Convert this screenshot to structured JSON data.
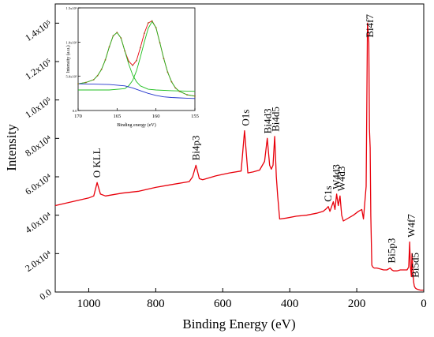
{
  "chart_data": [
    {
      "type": "line",
      "xlabel": "Binding Energy (eV)",
      "ylabel": "Intensity",
      "xlim": [
        1100,
        0
      ],
      "ylim": [
        0,
        150000
      ],
      "x_reversed": true,
      "grid": false,
      "legend": "none",
      "line_color": "#e8000b",
      "x_ticks": [
        {
          "value": 1000,
          "label": "1000"
        },
        {
          "value": 800,
          "label": "800"
        },
        {
          "value": 600,
          "label": "600"
        },
        {
          "value": 400,
          "label": "400"
        },
        {
          "value": 200,
          "label": "200"
        },
        {
          "value": 0,
          "label": "0"
        }
      ],
      "y_ticks": [
        {
          "value": 0,
          "label": "0.0"
        },
        {
          "value": 20000,
          "label": "2.0x10⁴"
        },
        {
          "value": 40000,
          "label": "4.0x10⁴"
        },
        {
          "value": 60000,
          "label": "6.0x10⁴"
        },
        {
          "value": 80000,
          "label": "8.0x10⁴"
        },
        {
          "value": 100000,
          "label": "1.0x10⁵"
        },
        {
          "value": 120000,
          "label": "1.2x10⁵"
        },
        {
          "value": 140000,
          "label": "1.4x10⁵"
        }
      ],
      "series": [
        {
          "x": [
            1100,
            1050,
            1000,
            985,
            975,
            965,
            950,
            900,
            850,
            800,
            750,
            700,
            690,
            680,
            670,
            660,
            620,
            580,
            545,
            535,
            525,
            510,
            490,
            475,
            467,
            460,
            455,
            450,
            445,
            440,
            436,
            430,
            410,
            380,
            350,
            320,
            300,
            290,
            285,
            280,
            270,
            265,
            260,
            255,
            250,
            245,
            240,
            230,
            210,
            195,
            185,
            180,
            172,
            168,
            164,
            162,
            160,
            158,
            155,
            152,
            148,
            140,
            130,
            120,
            110,
            100,
            95,
            90,
            80,
            70,
            60,
            50,
            45,
            42,
            40,
            37,
            35,
            32,
            30,
            28,
            25,
            20,
            10,
            0
          ],
          "y": [
            45000,
            47000,
            49000,
            50000,
            57000,
            51000,
            50000,
            51500,
            52500,
            54500,
            56000,
            57500,
            60000,
            66000,
            59000,
            58500,
            60500,
            62000,
            63000,
            84000,
            62000,
            62500,
            63500,
            68000,
            80000,
            66000,
            64000,
            66000,
            81000,
            60000,
            50000,
            38000,
            38500,
            39500,
            40000,
            41000,
            42000,
            43500,
            44500,
            42000,
            47000,
            43000,
            51000,
            45000,
            50000,
            40000,
            37000,
            38000,
            40000,
            42000,
            43000,
            38000,
            55000,
            140000,
            130000,
            85000,
            75000,
            40000,
            14000,
            13000,
            12500,
            12500,
            12000,
            11500,
            11500,
            12500,
            11500,
            11000,
            11000,
            11500,
            11500,
            11500,
            13000,
            26000,
            14000,
            8000,
            20000,
            10000,
            5000,
            3000,
            2000,
            1500,
            1000,
            1000
          ]
        }
      ],
      "annotations": [
        {
          "text": "O KLL",
          "x": 975
        },
        {
          "text": "Bi4p3",
          "x": 679
        },
        {
          "text": "O1s",
          "x": 531
        },
        {
          "text": "Bi4d3",
          "x": 465
        },
        {
          "text": "Bi4d5",
          "x": 442
        },
        {
          "text": "C1s",
          "x": 285
        },
        {
          "text": "W4d3",
          "x": 260
        },
        {
          "text": "W4d3",
          "x": 245
        },
        {
          "text": "Bi4f7",
          "x": 160
        },
        {
          "text": "Bi5p3",
          "x": 95
        },
        {
          "text": "W4f7",
          "x": 37
        },
        {
          "text": "Bi5d5",
          "x": 25
        }
      ]
    },
    {
      "type": "line",
      "xlabel": "Binding energy (eV)",
      "ylabel": "Intensity (a.u.)",
      "xlim": [
        170,
        155
      ],
      "ylim": [
        0,
        1500000
      ],
      "x_reversed": true,
      "grid": false,
      "legend": "none",
      "x_ticks": [
        {
          "value": 170,
          "label": "170"
        },
        {
          "value": 165,
          "label": "165"
        },
        {
          "value": 160,
          "label": "160"
        },
        {
          "value": 155,
          "label": "155"
        }
      ],
      "y_ticks": [
        {
          "value": 0,
          "label": "0.0"
        },
        {
          "value": 500000,
          "label": "5.0x10⁵"
        },
        {
          "value": 1000000,
          "label": "1.0x10⁶"
        },
        {
          "value": 1500000,
          "label": "1.5x10⁶"
        }
      ],
      "series": [
        {
          "color": "#e8000b",
          "x": [
            170,
            169,
            168,
            167.5,
            167,
            166.5,
            166,
            165.5,
            165,
            164.5,
            164,
            163.5,
            163,
            162.5,
            162,
            161.5,
            161,
            160.5,
            160,
            159.5,
            159,
            158.5,
            158,
            157.5,
            157,
            156,
            155
          ],
          "y": [
            390000,
            410000,
            450000,
            510000,
            600000,
            740000,
            930000,
            1090000,
            1140000,
            1060000,
            870000,
            720000,
            660000,
            730000,
            920000,
            1130000,
            1280000,
            1310000,
            1210000,
            990000,
            760000,
            560000,
            420000,
            330000,
            280000,
            230000,
            210000
          ]
        },
        {
          "color": "#1fbf1f",
          "x": [
            170,
            169,
            168,
            167.5,
            167,
            166.5,
            166,
            165.5,
            165,
            164.5,
            164,
            163.5,
            163,
            162.5,
            162,
            161,
            160,
            158,
            155
          ],
          "y": [
            390000,
            410000,
            450000,
            510000,
            600000,
            740000,
            930000,
            1090000,
            1140000,
            1060000,
            870000,
            680000,
            520000,
            420000,
            360000,
            310000,
            300000,
            290000,
            280000
          ]
        },
        {
          "color": "#1fbf1f",
          "x": [
            170,
            166,
            164,
            163.5,
            163,
            162.5,
            162,
            161.5,
            161,
            160.5,
            160,
            159.5,
            159,
            158.5,
            158,
            157.5,
            157,
            156,
            155
          ],
          "y": [
            300000,
            300000,
            320000,
            360000,
            440000,
            580000,
            780000,
            1000000,
            1200000,
            1300000,
            1210000,
            990000,
            760000,
            560000,
            420000,
            330000,
            280000,
            230000,
            210000
          ]
        },
        {
          "color": "#2233cc",
          "x": [
            170,
            168,
            166,
            164,
            163,
            162,
            161,
            160,
            159,
            158,
            157,
            156,
            155
          ],
          "y": [
            390000,
            385000,
            380000,
            360000,
            330000,
            290000,
            250000,
            220000,
            200000,
            190000,
            185000,
            180000,
            175000
          ]
        },
        {
          "color": "#8a6a1a",
          "marker": "dot",
          "x": [
            170,
            169,
            168,
            167.5,
            167,
            166.5,
            166,
            165.5,
            165,
            164.5,
            164,
            163.5,
            163,
            162.5,
            162,
            161.5,
            161,
            160.5,
            160,
            159.5,
            159,
            158.5,
            158,
            157.5,
            157,
            156,
            155
          ],
          "y": [
            390000,
            410000,
            450000,
            510000,
            600000,
            740000,
            930000,
            1090000,
            1140000,
            1060000,
            870000,
            720000,
            660000,
            730000,
            920000,
            1130000,
            1280000,
            1310000,
            1210000,
            990000,
            760000,
            560000,
            420000,
            330000,
            280000,
            230000,
            210000
          ]
        }
      ]
    }
  ]
}
